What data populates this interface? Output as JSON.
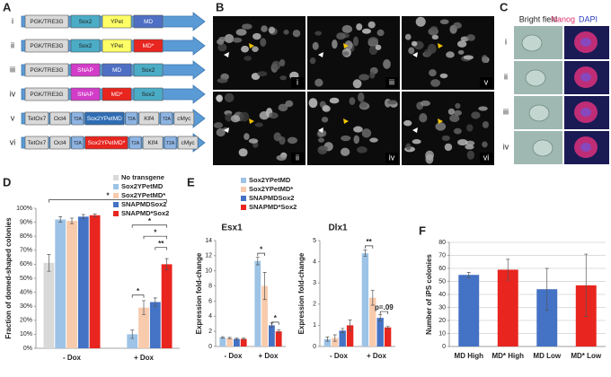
{
  "panel_labels": [
    "A",
    "B",
    "C",
    "D",
    "E",
    "F"
  ],
  "constructs": {
    "rows": [
      {
        "label": "i",
        "segments": [
          {
            "text": "PGK/TRE3G",
            "color": "#d9d9d9"
          },
          {
            "text": "Sox2",
            "color": "#4bacc6"
          },
          {
            "text": "YPet",
            "color": "#ffff66"
          },
          {
            "text": "MD",
            "color": "#4f6fc4"
          }
        ]
      },
      {
        "label": "ii",
        "segments": [
          {
            "text": "PGK/TRE3G",
            "color": "#d9d9d9"
          },
          {
            "text": "Sox2",
            "color": "#4bacc6"
          },
          {
            "text": "YPet",
            "color": "#ffff66"
          },
          {
            "text": "MD*",
            "color": "#e8251f"
          }
        ]
      },
      {
        "label": "iii",
        "segments": [
          {
            "text": "PGK/TRE3G",
            "color": "#d9d9d9"
          },
          {
            "text": "SNAP",
            "color": "#d23cc8"
          },
          {
            "text": "MD",
            "color": "#4f6fc4"
          },
          {
            "text": "Sox2",
            "color": "#4bacc6"
          }
        ]
      },
      {
        "label": "iv",
        "segments": [
          {
            "text": "PGK/TRE3G",
            "color": "#d9d9d9"
          },
          {
            "text": "SNAP",
            "color": "#d23cc8"
          },
          {
            "text": "MD*",
            "color": "#e8251f"
          },
          {
            "text": "Sox2",
            "color": "#4bacc6"
          }
        ]
      },
      {
        "label": "v",
        "segments": [
          {
            "text": "TetOx7",
            "color": "#d9d9d9"
          },
          {
            "text": "Oct4",
            "color": "#d9d9d9"
          },
          {
            "text": "T2A",
            "color": "#8eb4e3"
          },
          {
            "text": "Sox2YPetMD",
            "color": "#2e6db4"
          },
          {
            "text": "T2A",
            "color": "#8eb4e3"
          },
          {
            "text": "Klf4",
            "color": "#d9d9d9"
          },
          {
            "text": "T2A",
            "color": "#8eb4e3"
          },
          {
            "text": "cMyc",
            "color": "#d9d9d9"
          }
        ]
      },
      {
        "label": "vi",
        "segments": [
          {
            "text": "TetOx7",
            "color": "#d9d9d9"
          },
          {
            "text": "Oct4",
            "color": "#d9d9d9"
          },
          {
            "text": "T2A",
            "color": "#8eb4e3"
          },
          {
            "text": "Sox2YPetMD*",
            "color": "#e8251f"
          },
          {
            "text": "T2A",
            "color": "#8eb4e3"
          },
          {
            "text": "Klf4",
            "color": "#d9d9d9"
          },
          {
            "text": "T2A",
            "color": "#8eb4e3"
          },
          {
            "text": "cMyc",
            "color": "#d9d9d9"
          }
        ]
      }
    ]
  },
  "microscopy": {
    "labels": [
      "i",
      "iii",
      "v",
      "ii",
      "iv",
      "vi"
    ]
  },
  "staining": {
    "bright_field": "Bright field",
    "nanog": "Nanog",
    "dapi": "DAPI",
    "rows": [
      "i",
      "ii",
      "iii",
      "iv"
    ]
  },
  "chart_data": [
    {
      "type": "bar",
      "y_label": "Fraction of domed-shaped colonies",
      "categories": [
        "- Dox",
        "+ Dox"
      ],
      "series": [
        {
          "name": "No transgene",
          "color": "#d9d9d9",
          "values": [
            61,
            null
          ],
          "errors": [
            6,
            null
          ]
        },
        {
          "name": "Sox2YPetMD",
          "color": "#9dc3e6",
          "values": [
            92,
            10
          ],
          "errors": [
            2,
            3
          ]
        },
        {
          "name": "Sox2YPetMD*",
          "color": "#f8cbad",
          "values": [
            91,
            29
          ],
          "errors": [
            2,
            5
          ]
        },
        {
          "name": "SNAPMDSox2",
          "color": "#4472c4",
          "values": [
            94,
            33
          ],
          "errors": [
            1.5,
            3
          ]
        },
        {
          "name": "SNAPMD*Sox2",
          "color": "#e8251f",
          "values": [
            95,
            60
          ],
          "errors": [
            1,
            4
          ]
        }
      ],
      "ylim": [
        0,
        100
      ],
      "yticks": [
        {
          "value": 0,
          "label": "0%"
        },
        {
          "value": 10,
          "label": "10%"
        },
        {
          "value": 20,
          "label": "20%"
        },
        {
          "value": 30,
          "label": "30%"
        },
        {
          "value": 40,
          "label": "40%"
        },
        {
          "value": 50,
          "label": "50%"
        },
        {
          "value": 60,
          "label": "60%"
        },
        {
          "value": 70,
          "label": "70%"
        },
        {
          "value": 80,
          "label": "80%"
        },
        {
          "value": 90,
          "label": "90%"
        },
        {
          "value": 100,
          "label": "100%"
        }
      ],
      "annotations": [
        "*",
        "*",
        "*",
        "**",
        "*"
      ],
      "legend": true,
      "grid": false
    },
    {
      "type": "bar",
      "title": "Esx1",
      "y_label": "Expression fold-change",
      "categories": [
        "- Dox",
        "+ Dox"
      ],
      "series": [
        {
          "name": "Sox2YPetMD",
          "color": "#9dc3e6",
          "values": [
            1.2,
            11.3
          ],
          "errors": [
            0.1,
            0.5
          ]
        },
        {
          "name": "Sox2YPetMD*",
          "color": "#f8cbad",
          "values": [
            1.1,
            8
          ],
          "errors": [
            0.1,
            1.8
          ]
        },
        {
          "name": "SNAPMDSox2",
          "color": "#4472c4",
          "values": [
            1.0,
            2.8
          ],
          "errors": [
            0.1,
            0.3
          ]
        },
        {
          "name": "SNAPMD*Sox2",
          "color": "#e8251f",
          "values": [
            1.0,
            2.0
          ],
          "errors": [
            0.1,
            0.2
          ]
        }
      ],
      "ylim": [
        0,
        14
      ],
      "yticks": [
        0,
        2,
        4,
        6,
        8,
        10,
        12,
        14
      ],
      "annotations": [
        "*",
        "*"
      ],
      "legend": true,
      "grid": false
    },
    {
      "type": "bar",
      "title": "Dlx1",
      "y_label": "Expression fold-change",
      "categories": [
        "- Dox",
        "+ Dox"
      ],
      "series": [
        {
          "color": "#9dc3e6",
          "values": [
            0.35,
            4.4
          ],
          "errors": [
            0.1,
            0.15
          ]
        },
        {
          "color": "#f8cbad",
          "values": [
            0.4,
            2.3
          ],
          "errors": [
            0.15,
            0.35
          ]
        },
        {
          "color": "#4472c4",
          "values": [
            0.75,
            1.35
          ],
          "errors": [
            0.1,
            0.15
          ]
        },
        {
          "color": "#e8251f",
          "values": [
            1.0,
            0.9
          ],
          "errors": [
            0.25,
            0.05
          ]
        }
      ],
      "ylim": [
        0,
        5
      ],
      "yticks": [
        0,
        1,
        2,
        3,
        4,
        5
      ],
      "annotations": [
        "**",
        "p=.09"
      ],
      "legend": false,
      "grid": false
    },
    {
      "type": "bar",
      "y_label": "Number of iPS colonies",
      "categories": [
        "MD High",
        "MD* High",
        "MD Low",
        "MD* Low"
      ],
      "values": [
        55,
        59,
        44,
        47
      ],
      "errors": [
        2,
        8,
        16,
        24
      ],
      "colors": [
        "#4472c4",
        "#e8251f",
        "#4472c4",
        "#e8251f"
      ],
      "ylim": [
        0,
        80
      ],
      "yticks": [
        0,
        10,
        20,
        30,
        40,
        50,
        60,
        70,
        80
      ],
      "legend": false,
      "grid": true
    }
  ]
}
